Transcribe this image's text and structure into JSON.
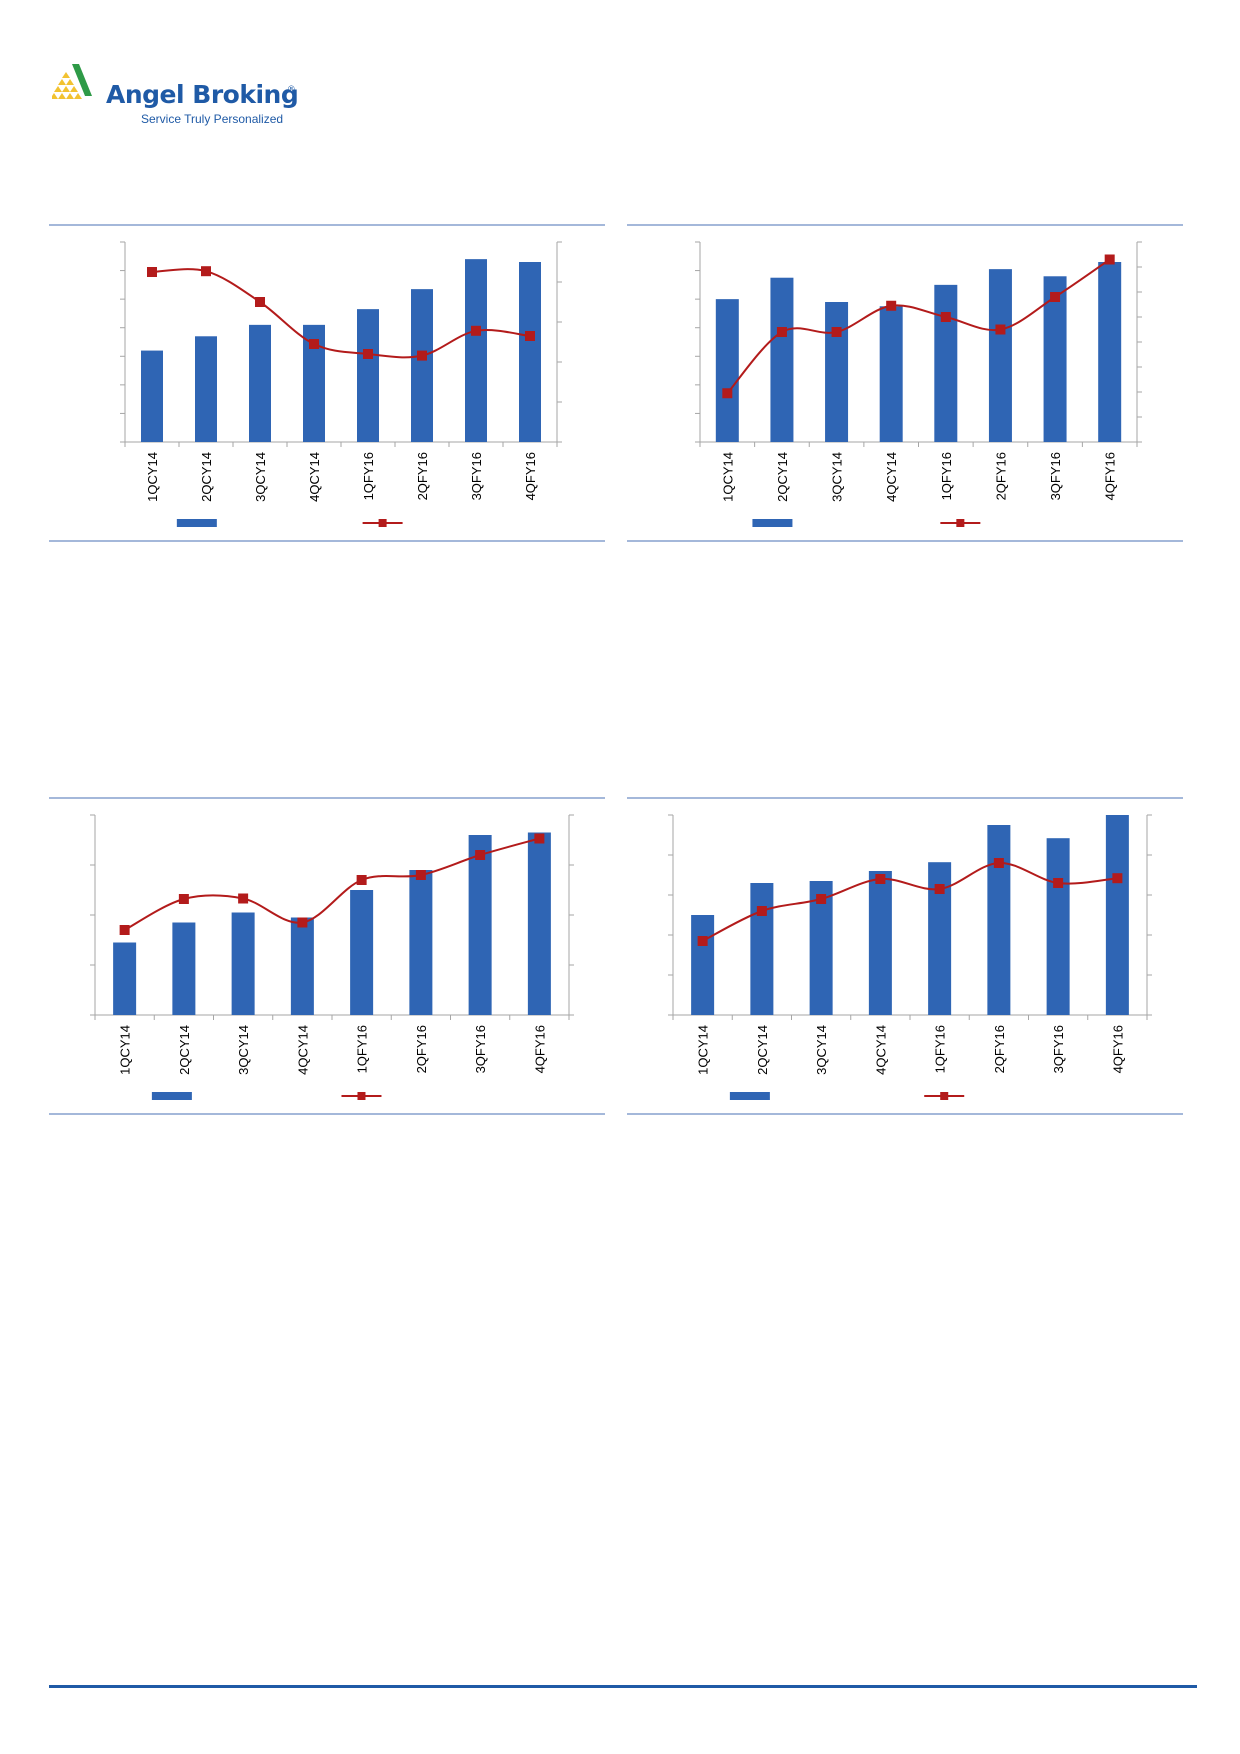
{
  "brand": {
    "name": "Angel Broking",
    "registered_mark": "®",
    "tagline": "Service Truly Personalized",
    "colors": {
      "primary": "#1f5aa6",
      "logo_green": "#2e9a47",
      "logo_yellow": "#f2c230"
    }
  },
  "chart_style": {
    "bar_color": "#2f65b4",
    "line_color": "#b31b1b",
    "rule_color": "#4a72b5",
    "axis_color": "#a6a6a6"
  },
  "chart_data": [
    {
      "type": "bar",
      "categories": [
        "1QCY14",
        "2QCY14",
        "3QCY14",
        "4QCY14",
        "1QFY16",
        "2QFY16",
        "3QFY16",
        "4QFY16"
      ],
      "series": [
        {
          "kind": "bar",
          "values": [
            3.2,
            3.7,
            4.1,
            4.1,
            4.65,
            5.35,
            6.4,
            6.3
          ],
          "ylim": [
            0,
            7
          ]
        },
        {
          "kind": "line",
          "values": [
            4.25,
            4.27,
            3.5,
            2.45,
            2.2,
            2.16,
            2.78,
            2.65
          ],
          "ylim": [
            0,
            5
          ]
        }
      ],
      "left_ticks": 7,
      "right_ticks": 5
    },
    {
      "type": "bar",
      "categories": [
        "1QCY14",
        "2QCY14",
        "3QCY14",
        "4QCY14",
        "1QFY16",
        "2QFY16",
        "3QFY16",
        "4QFY16"
      ],
      "series": [
        {
          "kind": "bar",
          "values": [
            5.0,
            5.75,
            4.9,
            4.75,
            5.5,
            6.05,
            5.8,
            6.3
          ],
          "ylim": [
            0,
            7
          ]
        },
        {
          "kind": "line",
          "values": [
            1.95,
            4.4,
            4.4,
            5.45,
            5.0,
            4.5,
            5.8,
            7.3
          ],
          "ylim": [
            0,
            8
          ]
        }
      ],
      "left_ticks": 7,
      "right_ticks": 8
    },
    {
      "type": "bar",
      "categories": [
        "1QCY14",
        "2QCY14",
        "3QCY14",
        "4QCY14",
        "1QFY16",
        "2QFY16",
        "3QFY16",
        "4QFY16"
      ],
      "series": [
        {
          "kind": "bar",
          "values": [
            1.45,
            1.85,
            2.05,
            1.95,
            2.5,
            2.9,
            3.6,
            3.65
          ],
          "ylim": [
            0,
            4
          ]
        },
        {
          "kind": "line",
          "values": [
            1.7,
            2.32,
            2.33,
            1.85,
            2.7,
            2.8,
            3.2,
            3.53
          ],
          "ylim": [
            0,
            4
          ]
        }
      ],
      "left_ticks": 4,
      "right_ticks": 4
    },
    {
      "type": "bar",
      "categories": [
        "1QCY14",
        "2QCY14",
        "3QCY14",
        "4QCY14",
        "1QFY16",
        "2QFY16",
        "3QFY16",
        "4QFY16"
      ],
      "series": [
        {
          "kind": "bar",
          "values": [
            2.5,
            3.3,
            3.35,
            3.6,
            3.82,
            4.75,
            4.42,
            5.0
          ],
          "ylim": [
            0,
            5
          ]
        },
        {
          "kind": "line",
          "values": [
            1.85,
            2.6,
            2.9,
            3.4,
            3.15,
            3.8,
            3.3,
            3.42
          ],
          "ylim": [
            0,
            5
          ]
        }
      ],
      "left_ticks": 5,
      "right_ticks": 5
    }
  ]
}
